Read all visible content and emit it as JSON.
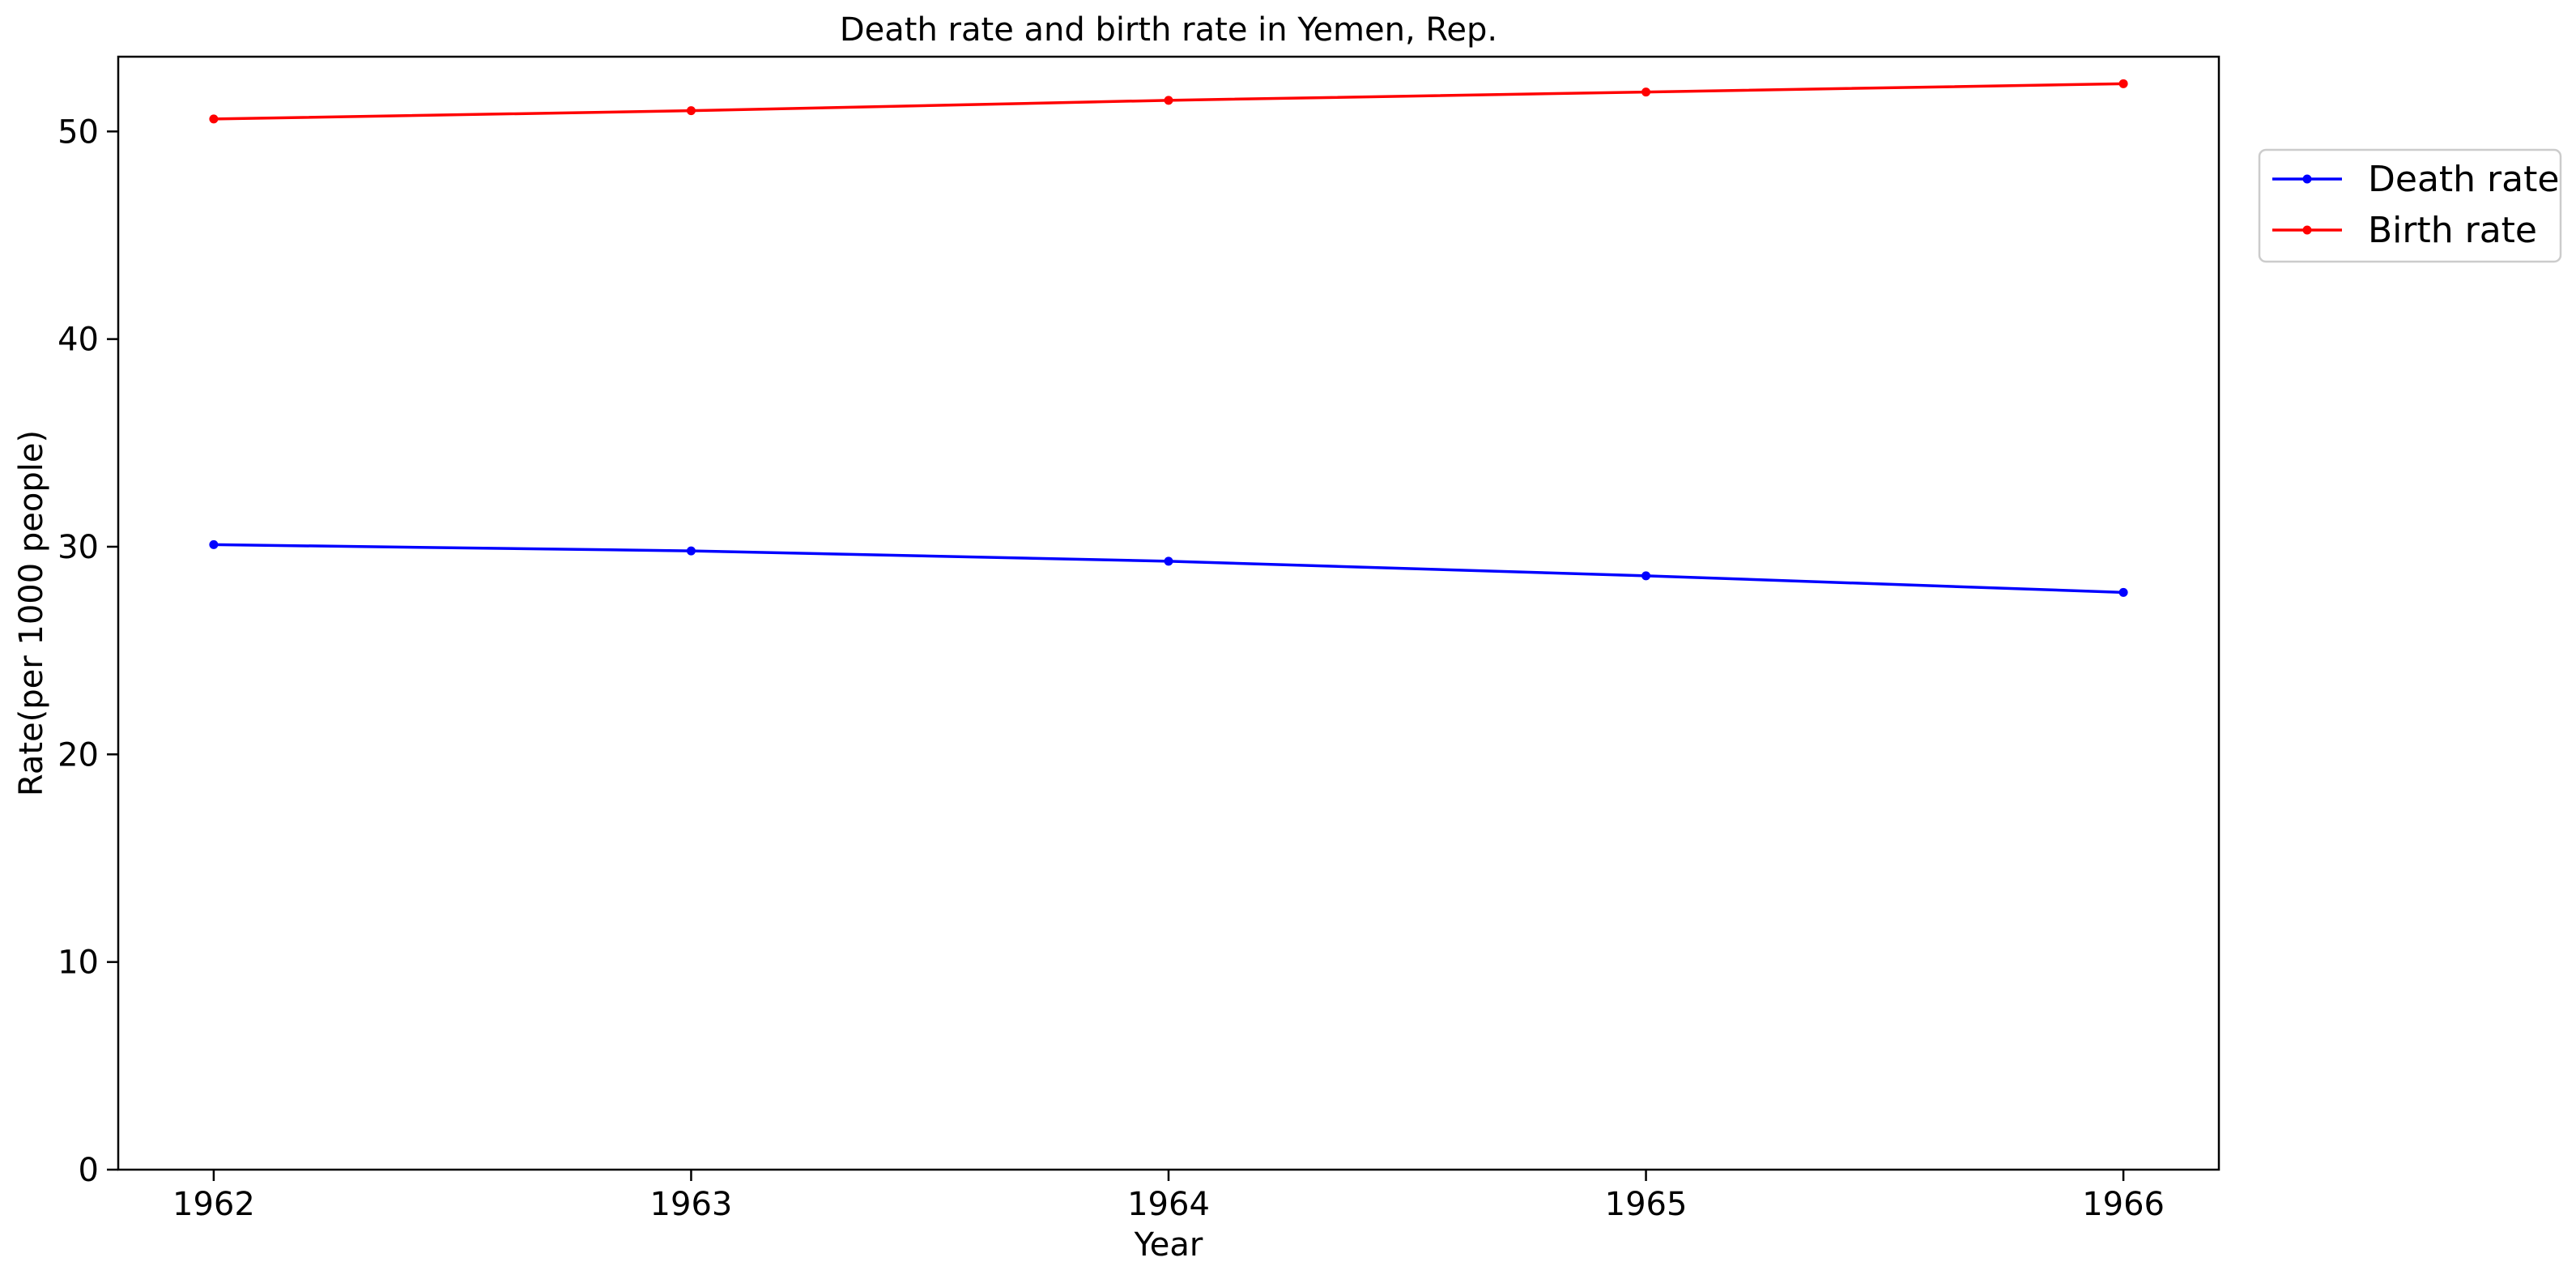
{
  "chart_data": {
    "type": "line",
    "title": "Death rate and birth rate in Yemen, Rep.",
    "xlabel": "Year",
    "ylabel": "Rate(per 1000 people)",
    "x": [
      1962,
      1963,
      1964,
      1965,
      1966
    ],
    "xlim": [
      1961.8,
      1966.2
    ],
    "ylim": [
      0,
      53.6
    ],
    "yticks": [
      0,
      10,
      20,
      30,
      40,
      50
    ],
    "grid": false,
    "legend_position": "outside-right-top",
    "series": [
      {
        "name": "Death rate",
        "color": "#0000ff",
        "values": [
          30.1,
          29.8,
          29.3,
          28.6,
          27.8
        ]
      },
      {
        "name": "Birth rate",
        "color": "#ff0000",
        "values": [
          50.6,
          51.0,
          51.5,
          51.9,
          52.3
        ]
      }
    ]
  }
}
